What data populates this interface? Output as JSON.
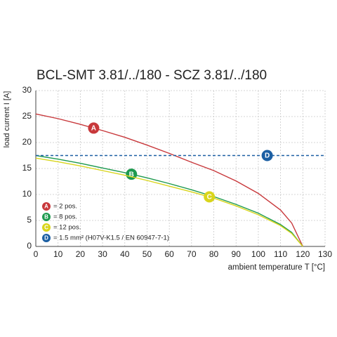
{
  "chart_data": {
    "type": "line",
    "title": "BCL-SMT 3.81/../180 - SCZ 3.81/../180",
    "x_label": "ambient temperature T [°C]",
    "y_label": "load current I [A]",
    "x": [
      0,
      10,
      20,
      30,
      40,
      50,
      60,
      70,
      80,
      90,
      100,
      110,
      115,
      120
    ],
    "series": [
      {
        "name": "= 2 pos.",
        "marker": "A",
        "color": "#c8383b",
        "values": [
          25.5,
          24.6,
          23.5,
          22.3,
          21.0,
          19.5,
          17.9,
          16.2,
          14.6,
          12.6,
          10.2,
          7.0,
          4.5,
          0
        ]
      },
      {
        "name": "= 8 pos.",
        "marker": "B",
        "color": "#1e9a4f",
        "values": [
          17.5,
          16.8,
          16.0,
          15.1,
          14.2,
          13.2,
          12.1,
          10.9,
          9.6,
          8.1,
          6.4,
          4.2,
          2.7,
          0
        ]
      },
      {
        "name": "= 12 pos.",
        "marker": "C",
        "color": "#d9d51c",
        "values": [
          17.0,
          16.3,
          15.5,
          14.6,
          13.7,
          12.7,
          11.6,
          10.5,
          9.3,
          7.8,
          6.1,
          4.0,
          2.5,
          0
        ]
      },
      {
        "name": "= 1.5 mm² (H07V-K1.5 / EN 60947-7-1)",
        "marker": "D",
        "color": "#1c5fa3",
        "dashed": true,
        "x": [
          0,
          130
        ],
        "values": [
          17.5,
          17.5
        ]
      }
    ],
    "xlim": [
      0,
      130
    ],
    "ylim": [
      0,
      30
    ],
    "xticks": [
      0,
      10,
      20,
      30,
      40,
      50,
      60,
      70,
      80,
      90,
      100,
      110,
      120,
      130
    ],
    "yticks": [
      0,
      5,
      10,
      15,
      20,
      25,
      30
    ],
    "grid": true
  }
}
